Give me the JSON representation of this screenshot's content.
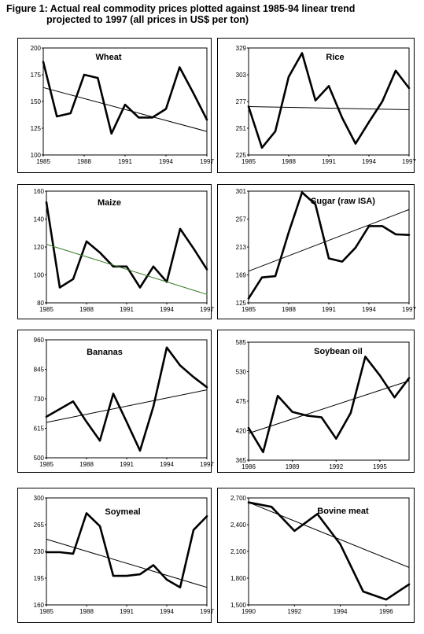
{
  "figure": {
    "title_line1": "Figure 1: Actual real commodity prices plotted against 1985-94 linear trend",
    "title_line2": "projected to 1997 (all prices in US$ per ton)"
  },
  "chart_data": [
    {
      "type": "line",
      "title": "Wheat",
      "x_ticks": [
        "1985",
        "1988",
        "1991",
        "1994",
        "1997"
      ],
      "y_ticks": [
        "200",
        "175",
        "150",
        "125",
        "100"
      ],
      "ylim": [
        100,
        200
      ],
      "xlim": [
        1985,
        1997
      ],
      "series": [
        {
          "role": "actual",
          "x": [
            1985,
            1986,
            1987,
            1988,
            1989,
            1990,
            1991,
            1992,
            1993,
            1994,
            1995,
            1996,
            1997
          ],
          "values": [
            187,
            136,
            139,
            175,
            172,
            120,
            147,
            135,
            135,
            143,
            182,
            158,
            133
          ]
        },
        {
          "role": "trend",
          "x": [
            1985,
            1997
          ],
          "values": [
            163,
            122
          ]
        }
      ]
    },
    {
      "type": "line",
      "title": "Rice",
      "x_ticks": [
        "1985",
        "1988",
        "1991",
        "1994",
        "1997"
      ],
      "y_ticks": [
        "329",
        "303",
        "277",
        "251",
        "225"
      ],
      "ylim": [
        225,
        329
      ],
      "xlim": [
        1985,
        1997
      ],
      "series": [
        {
          "role": "actual",
          "x": [
            1985,
            1986,
            1987,
            1988,
            1989,
            1990,
            1991,
            1992,
            1993,
            1994,
            1995,
            1996,
            1997
          ],
          "values": [
            272,
            232,
            248,
            301,
            324,
            278,
            292,
            261,
            236,
            257,
            277,
            307,
            290
          ]
        },
        {
          "role": "trend",
          "x": [
            1985,
            1997
          ],
          "values": [
            272,
            269
          ]
        }
      ]
    },
    {
      "type": "line",
      "title": "Maize",
      "x_ticks": [
        "1985",
        "1988",
        "1991",
        "1994",
        "1997"
      ],
      "y_ticks": [
        "160",
        "140",
        "120",
        "100",
        "80"
      ],
      "ylim": [
        80,
        160
      ],
      "xlim": [
        1985,
        1997
      ],
      "series": [
        {
          "role": "actual",
          "x": [
            1985,
            1986,
            1987,
            1988,
            1989,
            1990,
            1991,
            1992,
            1993,
            1994,
            1995,
            1996,
            1997
          ],
          "values": [
            152,
            91,
            97,
            124,
            116,
            106,
            106,
            91,
            106,
            95,
            133,
            119,
            104
          ]
        },
        {
          "role": "trend",
          "x": [
            1985,
            1997
          ],
          "values": [
            122,
            86
          ]
        }
      ]
    },
    {
      "type": "line",
      "title": "Sugar (raw ISA)",
      "x_ticks": [
        "1985",
        "1988",
        "1991",
        "1994",
        "1997"
      ],
      "y_ticks": [
        "301",
        "257",
        "213",
        "169",
        "125"
      ],
      "ylim": [
        125,
        301
      ],
      "xlim": [
        1985,
        1997
      ],
      "series": [
        {
          "role": "actual",
          "x": [
            1985,
            1986,
            1987,
            1988,
            1989,
            1990,
            1991,
            1992,
            1993,
            1994,
            1995,
            1996,
            1997
          ],
          "values": [
            132,
            165,
            167,
            236,
            299,
            280,
            195,
            190,
            212,
            246,
            246,
            233,
            232
          ]
        },
        {
          "role": "trend",
          "x": [
            1985,
            1997
          ],
          "values": [
            175,
            272
          ]
        }
      ]
    },
    {
      "type": "line",
      "title": "Bananas",
      "x_ticks": [
        "1985",
        "1988",
        "1991",
        "1994",
        "1997"
      ],
      "y_ticks": [
        "960",
        "845",
        "730",
        "615",
        "500"
      ],
      "ylim": [
        500,
        960
      ],
      "xlim": [
        1985,
        1997
      ],
      "series": [
        {
          "role": "actual",
          "x": [
            1985,
            1986,
            1987,
            1988,
            1989,
            1990,
            1991,
            1992,
            1993,
            1994,
            1995,
            1996,
            1997
          ],
          "values": [
            660,
            690,
            720,
            640,
            567,
            750,
            640,
            528,
            700,
            930,
            860,
            815,
            775
          ]
        },
        {
          "role": "trend",
          "x": [
            1985,
            1997
          ],
          "values": [
            638,
            765
          ]
        }
      ]
    },
    {
      "type": "line",
      "title": "Soybean oil",
      "x_ticks": [
        "1986",
        "1989",
        "1992",
        "1995"
      ],
      "y_ticks": [
        "585",
        "530",
        "475",
        "420",
        "365"
      ],
      "ylim": [
        365,
        585
      ],
      "xlim": [
        1986,
        1997
      ],
      "series": [
        {
          "role": "actual",
          "x": [
            1986,
            1987,
            1988,
            1989,
            1990,
            1991,
            1992,
            1993,
            1994,
            1995,
            1996,
            1997
          ],
          "values": [
            425,
            380,
            485,
            455,
            448,
            445,
            405,
            453,
            558,
            523,
            482,
            518
          ]
        },
        {
          "role": "trend",
          "x": [
            1986,
            1997
          ],
          "values": [
            415,
            513
          ]
        }
      ]
    },
    {
      "type": "line",
      "title": "Soymeal",
      "x_ticks": [
        "1985",
        "1988",
        "1991",
        "1994",
        "1997"
      ],
      "y_ticks": [
        "300",
        "265",
        "230",
        "195",
        "160"
      ],
      "ylim": [
        160,
        300
      ],
      "xlim": [
        1985,
        1997
      ],
      "series": [
        {
          "role": "actual",
          "x": [
            1985,
            1986,
            1987,
            1988,
            1989,
            1990,
            1991,
            1992,
            1993,
            1994,
            1995,
            1996,
            1997
          ],
          "values": [
            229,
            229,
            227,
            280,
            263,
            198,
            198,
            200,
            212,
            193,
            183,
            258,
            276
          ]
        },
        {
          "role": "trend",
          "x": [
            1985,
            1997
          ],
          "values": [
            246,
            183
          ]
        }
      ]
    },
    {
      "type": "line",
      "title": "Bovine meat",
      "x_ticks": [
        "1990",
        "1992",
        "1994",
        "1996"
      ],
      "y_ticks": [
        "2,700",
        "2,400",
        "2,100",
        "1,800",
        "1,500"
      ],
      "ylim": [
        1500,
        2700
      ],
      "xlim": [
        1990,
        1997
      ],
      "series": [
        {
          "role": "actual",
          "x": [
            1990,
            1991,
            1992,
            1993,
            1994,
            1995,
            1996,
            1997
          ],
          "values": [
            2650,
            2600,
            2330,
            2520,
            2180,
            1650,
            1560,
            1730
          ]
        },
        {
          "role": "trend",
          "x": [
            1990,
            1997
          ],
          "values": [
            2650,
            1920
          ]
        }
      ]
    }
  ],
  "colors": {
    "actual_line": "#000000",
    "trend_line": "#000000",
    "maize_trend_line": "#3a7d2a",
    "border": "#000000"
  }
}
